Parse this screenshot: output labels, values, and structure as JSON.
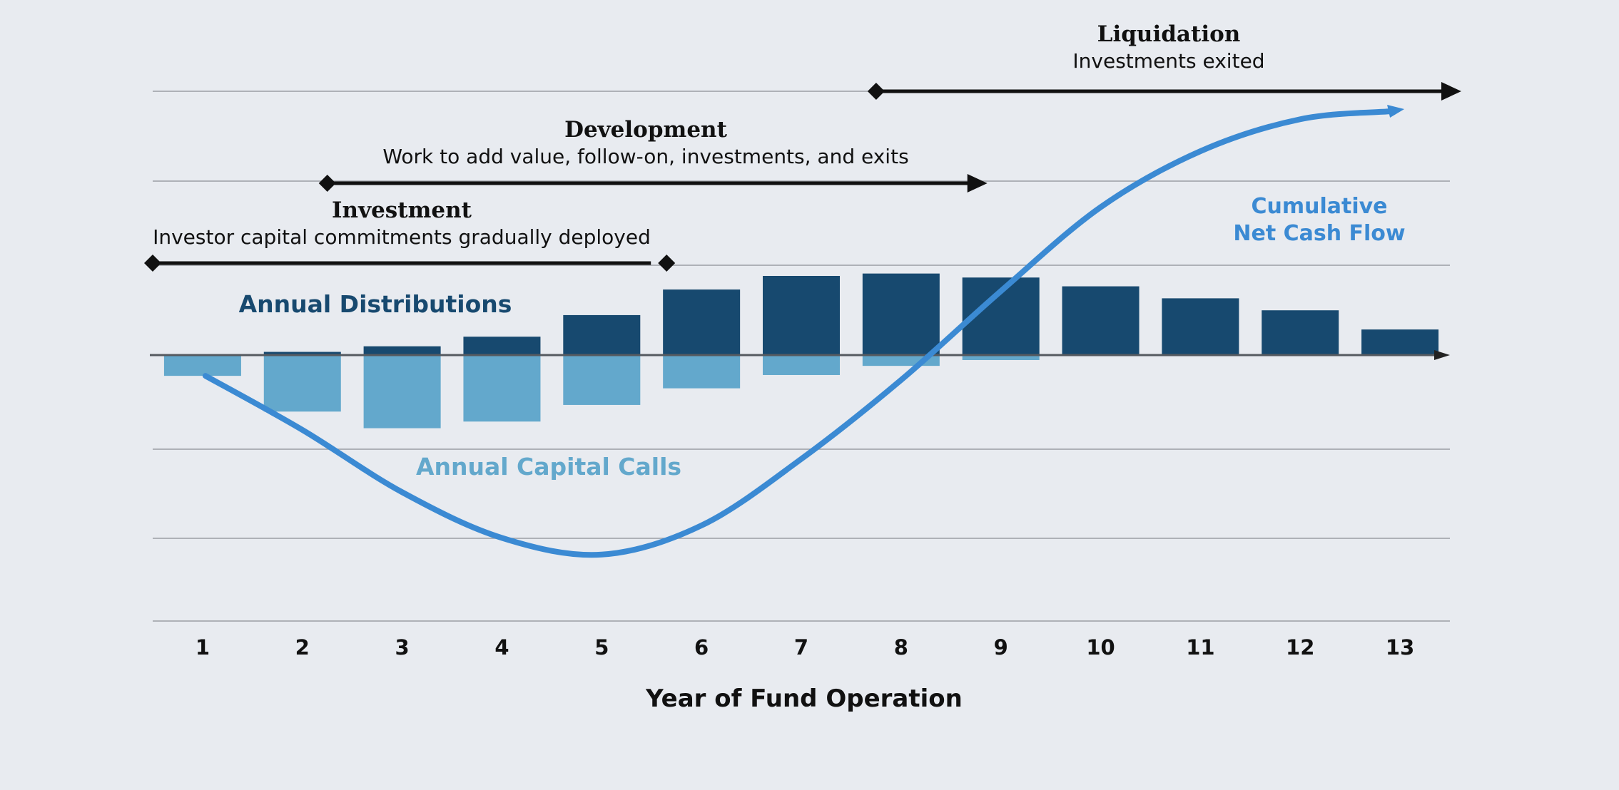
{
  "chart_data": {
    "type": "bar",
    "title": "",
    "xlabel": "Year of Fund Operation",
    "ylabel": "",
    "categories": [
      "1",
      "2",
      "3",
      "4",
      "5",
      "6",
      "7",
      "8",
      "9",
      "10",
      "11",
      "12",
      "13"
    ],
    "series": [
      {
        "name": "Annual Distributions",
        "values": [
          0,
          0.4,
          1.1,
          2.3,
          5.0,
          8.2,
          9.9,
          10.2,
          9.7,
          8.6,
          7.1,
          5.6,
          3.2
        ]
      },
      {
        "name": "Annual Capital Calls",
        "values": [
          -2.5,
          -6.8,
          -8.8,
          -8.0,
          -6.0,
          -4.0,
          -2.4,
          -1.3,
          -0.6,
          0,
          0,
          0,
          0
        ]
      },
      {
        "name": "Cumulative Net Cash Flow",
        "values": [
          -2.5,
          -9.0,
          -16.5,
          -22.0,
          -24.0,
          -20.5,
          -12.5,
          -3.0,
          8.0,
          18.5,
          25.5,
          29.5,
          30.5
        ]
      }
    ],
    "ylim": [
      -32,
      33
    ],
    "grid": true,
    "phases": [
      {
        "title": "Investment",
        "subtitle": "Investor capital commitments gradually deployed",
        "start": 0.5,
        "end": 5.65
      },
      {
        "title": "Development",
        "subtitle": "Work to add value, follow-on, investments, and exits",
        "start": 2.25,
        "end": 8.85
      },
      {
        "title": "Liquidation",
        "subtitle": "Investments exited",
        "start": 7.75,
        "end": 13.6
      }
    ],
    "annotations": {
      "distributions": "Annual Distributions",
      "capital_calls": "Annual Capital Calls",
      "cumulative_line1": "Cumulative",
      "cumulative_line2": "Net Cash Flow"
    }
  },
  "colors": {
    "background": "#e8ebf0",
    "distributions": "#17496f",
    "capital_calls": "#63a8cc",
    "cumulative": "#3b8ad3",
    "gridline": "#9a9ea4",
    "text": "#111111"
  }
}
